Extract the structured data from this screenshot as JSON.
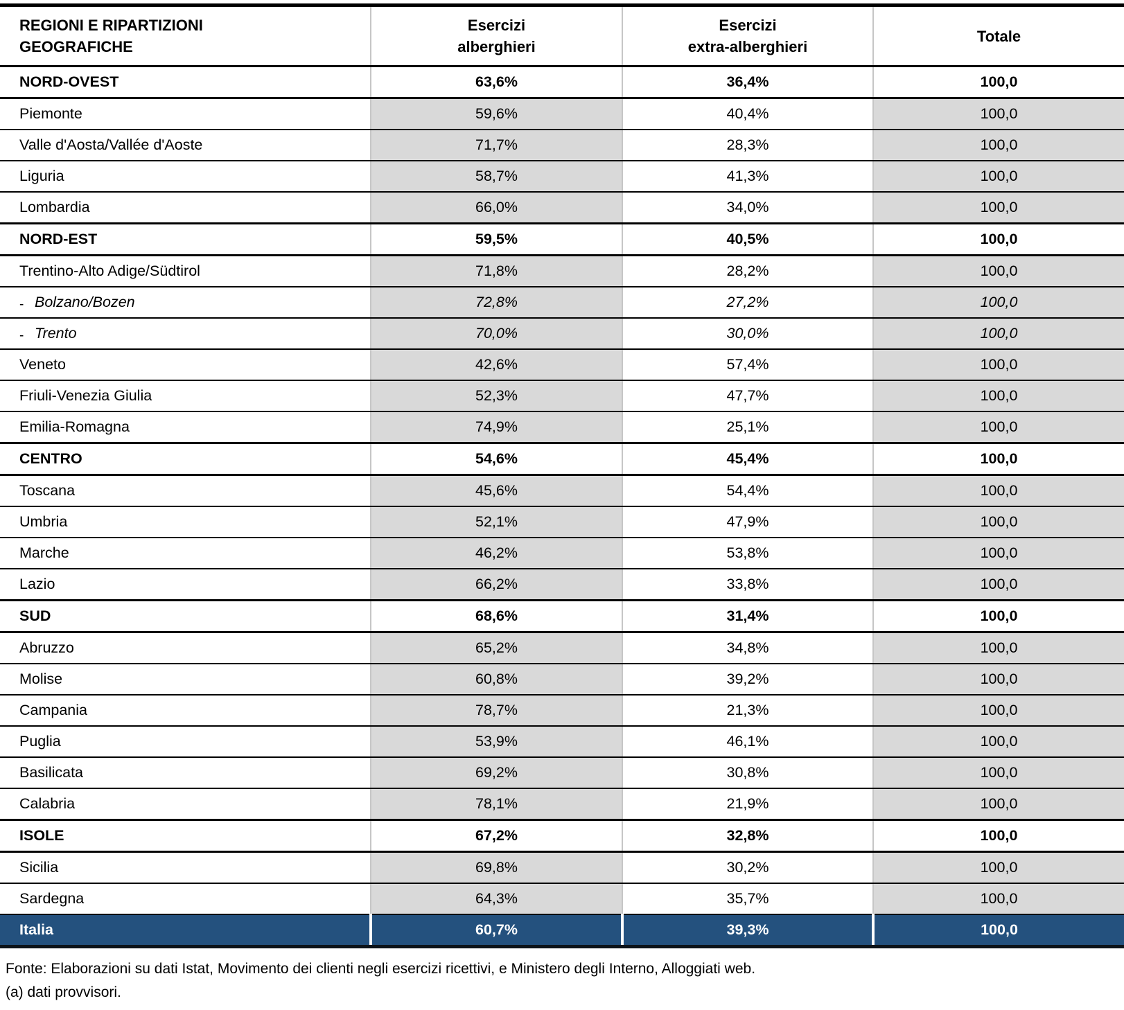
{
  "colors": {
    "row_shade": "#d9d9d9",
    "total_row_background": "#24517e",
    "total_row_text": "#ffffff",
    "grid_line": "#c6c6c6",
    "border": "#000000"
  },
  "table": {
    "subregion_marker": "-",
    "columns": [
      {
        "id": "region",
        "label_lines": [
          "REGIONI E RIPARTIZIONI",
          "GEOGRAFICHE"
        ]
      },
      {
        "id": "alberghieri",
        "label_lines": [
          "Esercizi",
          "alberghieri"
        ]
      },
      {
        "id": "extra",
        "label_lines": [
          "Esercizi",
          "extra-alberghieri"
        ]
      },
      {
        "id": "totale",
        "label_lines": [
          "Totale"
        ]
      }
    ],
    "rows": [
      {
        "style": "section",
        "name": "NORD-OVEST",
        "alberghieri": "63,6%",
        "extra": "36,4%",
        "totale": "100,0"
      },
      {
        "style": "region",
        "name": "Piemonte",
        "alberghieri": "59,6%",
        "extra": "40,4%",
        "totale": "100,0"
      },
      {
        "style": "region",
        "name": "Valle d'Aosta/Vallée d'Aoste",
        "alberghieri": "71,7%",
        "extra": "28,3%",
        "totale": "100,0"
      },
      {
        "style": "region",
        "name": "Liguria",
        "alberghieri": "58,7%",
        "extra": "41,3%",
        "totale": "100,0"
      },
      {
        "style": "region",
        "name": "Lombardia",
        "alberghieri": "66,0%",
        "extra": "34,0%",
        "totale": "100,0"
      },
      {
        "style": "section",
        "name": "NORD-EST",
        "alberghieri": "59,5%",
        "extra": "40,5%",
        "totale": "100,0"
      },
      {
        "style": "region",
        "name": "Trentino-Alto Adige/Südtirol",
        "alberghieri": "71,8%",
        "extra": "28,2%",
        "totale": "100,0"
      },
      {
        "style": "subregion",
        "name": "Bolzano/Bozen",
        "alberghieri": "72,8%",
        "extra": "27,2%",
        "totale": "100,0"
      },
      {
        "style": "subregion",
        "name": "Trento",
        "alberghieri": "70,0%",
        "extra": "30,0%",
        "totale": "100,0"
      },
      {
        "style": "region",
        "name": "Veneto",
        "alberghieri": "42,6%",
        "extra": "57,4%",
        "totale": "100,0"
      },
      {
        "style": "region",
        "name": "Friuli-Venezia Giulia",
        "alberghieri": "52,3%",
        "extra": "47,7%",
        "totale": "100,0"
      },
      {
        "style": "region",
        "name": "Emilia-Romagna",
        "alberghieri": "74,9%",
        "extra": "25,1%",
        "totale": "100,0"
      },
      {
        "style": "section",
        "name": "CENTRO",
        "alberghieri": "54,6%",
        "extra": "45,4%",
        "totale": "100,0"
      },
      {
        "style": "region",
        "name": "Toscana",
        "alberghieri": "45,6%",
        "extra": "54,4%",
        "totale": "100,0"
      },
      {
        "style": "region",
        "name": "Umbria",
        "alberghieri": "52,1%",
        "extra": "47,9%",
        "totale": "100,0"
      },
      {
        "style": "region",
        "name": "Marche",
        "alberghieri": "46,2%",
        "extra": "53,8%",
        "totale": "100,0"
      },
      {
        "style": "region",
        "name": "Lazio",
        "alberghieri": "66,2%",
        "extra": "33,8%",
        "totale": "100,0"
      },
      {
        "style": "section",
        "name": "SUD",
        "alberghieri": "68,6%",
        "extra": "31,4%",
        "totale": "100,0"
      },
      {
        "style": "region",
        "name": "Abruzzo",
        "alberghieri": "65,2%",
        "extra": "34,8%",
        "totale": "100,0"
      },
      {
        "style": "region",
        "name": "Molise",
        "alberghieri": "60,8%",
        "extra": "39,2%",
        "totale": "100,0"
      },
      {
        "style": "region",
        "name": "Campania",
        "alberghieri": "78,7%",
        "extra": "21,3%",
        "totale": "100,0"
      },
      {
        "style": "region",
        "name": "Puglia",
        "alberghieri": "53,9%",
        "extra": "46,1%",
        "totale": "100,0"
      },
      {
        "style": "region",
        "name": "Basilicata",
        "alberghieri": "69,2%",
        "extra": "30,8%",
        "totale": "100,0"
      },
      {
        "style": "region",
        "name": "Calabria",
        "alberghieri": "78,1%",
        "extra": "21,9%",
        "totale": "100,0"
      },
      {
        "style": "section",
        "name": "ISOLE",
        "alberghieri": "67,2%",
        "extra": "32,8%",
        "totale": "100,0"
      },
      {
        "style": "region",
        "name": "Sicilia",
        "alberghieri": "69,8%",
        "extra": "30,2%",
        "totale": "100,0"
      },
      {
        "style": "region",
        "name": "Sardegna",
        "alberghieri": "64,3%",
        "extra": "35,7%",
        "totale": "100,0"
      },
      {
        "style": "total",
        "name": "Italia",
        "alberghieri": "60,7%",
        "extra": "39,3%",
        "totale": "100,0"
      }
    ]
  },
  "footer": {
    "line1": "Fonte: Elaborazioni su dati Istat, Movimento dei clienti negli esercizi ricettivi, e Ministero degli Interno, Alloggiati web.",
    "line2": "(a) dati provvisori."
  }
}
